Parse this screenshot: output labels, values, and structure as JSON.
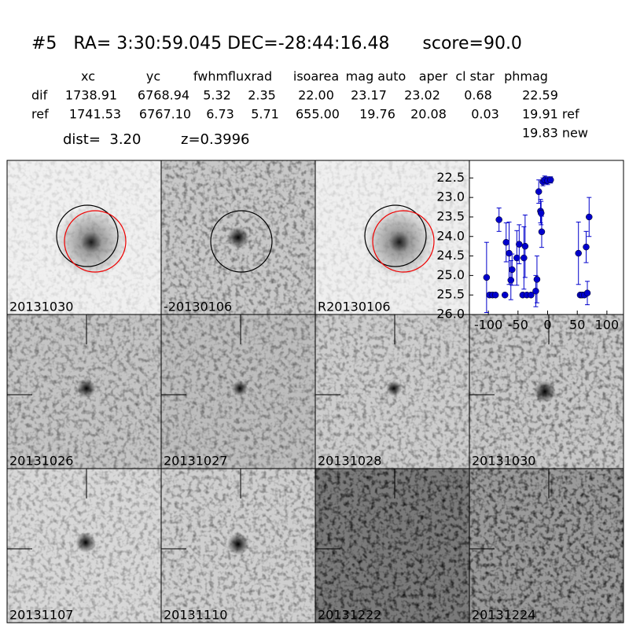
{
  "header": {
    "title": "#5   RA= 3:30:59.045 DEC=-28:44:16.48      score=90.0"
  },
  "table": {
    "columns": [
      "xc",
      "yc",
      "fwhm",
      "fluxrad",
      "isoarea",
      "mag auto",
      "aper",
      "cl star",
      "phmag"
    ],
    "rows": [
      [
        "dif",
        "1738.91",
        "6768.94",
        "5.32",
        "2.35",
        "22.00",
        "23.17",
        "23.02",
        "0.68",
        "22.59"
      ],
      [
        "ref",
        "1741.53",
        "6767.10",
        "6.73",
        "5.71",
        "655.00",
        "19.76",
        "20.08",
        "0.03",
        "19.91 ref"
      ]
    ],
    "extra": "19.83 new",
    "dist": "dist=  3.20",
    "z": "z=0.3996"
  },
  "panels": [
    {
      "label": "20131030"
    },
    {
      "label": "-20130106"
    },
    {
      "label": "R20130106"
    },
    {
      "label": "20131026"
    },
    {
      "label": "20131027"
    },
    {
      "label": "20131028"
    },
    {
      "label": "20131030",
      "color": "#ff0000"
    },
    {
      "label": "20131107"
    },
    {
      "label": "20131110"
    },
    {
      "label": "20131222"
    },
    {
      "label": "20131224"
    }
  ],
  "chart_data": {
    "type": "scatter",
    "color": "#0000cc",
    "x": [
      -103,
      -98,
      -93,
      -88,
      -82,
      -72,
      -70,
      -65,
      -62,
      -60,
      -52,
      -48,
      -42,
      -40,
      -38,
      -35,
      -28,
      -20,
      -18,
      -15,
      -12,
      -11,
      -10,
      -8,
      -5,
      0,
      5,
      52,
      55,
      58,
      62,
      65,
      67,
      70
    ],
    "values": [
      25.05,
      25.5,
      25.5,
      25.5,
      23.57,
      25.5,
      24.15,
      24.43,
      25.12,
      24.85,
      24.55,
      24.2,
      25.5,
      24.55,
      24.25,
      25.5,
      25.5,
      25.4,
      25.1,
      22.85,
      23.35,
      23.4,
      23.88,
      22.6,
      22.55,
      22.57,
      22.55,
      24.43,
      25.5,
      25.5,
      25.5,
      24.27,
      25.45,
      23.5
    ],
    "errors": [
      0.9,
      0.05,
      0.05,
      0.05,
      0.3,
      0.05,
      0.5,
      0.8,
      0.5,
      0.4,
      0.7,
      0.5,
      0.05,
      0.8,
      0.8,
      0.05,
      0.05,
      0.4,
      0.6,
      0.3,
      0.3,
      0.3,
      0.4,
      0.1,
      0.1,
      0.1,
      0.08,
      0.8,
      0.05,
      0.05,
      0.05,
      0.4,
      0.3,
      0.5
    ],
    "xlim": [
      -132,
      128
    ],
    "ylim": [
      26.0,
      22.05
    ],
    "xticks": [
      -100,
      -50,
      0,
      50,
      100
    ],
    "yticks": [
      {
        "value": 22.5,
        "label": "22.5"
      },
      {
        "value": 23,
        "label": "23.0"
      },
      {
        "value": 23.5,
        "label": "23.5"
      },
      {
        "value": 24,
        "label": "24.0"
      },
      {
        "value": 24.5,
        "label": "24.5"
      },
      {
        "value": 25,
        "label": "25.0"
      },
      {
        "value": 25.5,
        "label": "25.5"
      },
      {
        "value": 26,
        "label": "26.0"
      }
    ]
  }
}
